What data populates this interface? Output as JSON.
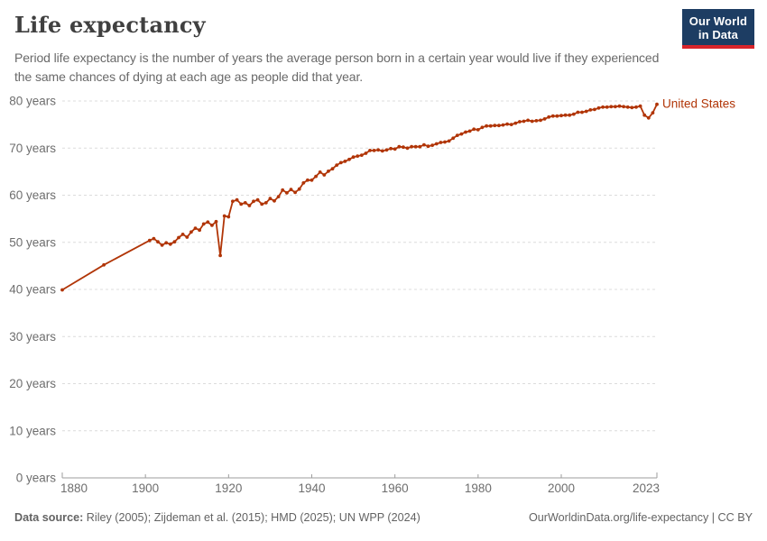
{
  "header": {
    "title": "Life expectancy",
    "subtitle": "Period life expectancy is the number of years the average person born in a certain year would live if they experienced the same chances of dying at each age as people did that year."
  },
  "logo": {
    "line1": "Our World",
    "line2": "in Data",
    "bg_color": "#1d3d63",
    "accent_color": "#d8242a"
  },
  "footer": {
    "datasource_label": "Data source:",
    "datasource_text": " Riley (2005); Zijdeman et al. (2015); HMD (2025); UN WPP (2024)",
    "link_text": "OurWorldinData.org/life-expectancy | CC BY"
  },
  "chart_data": {
    "type": "line",
    "title": "Life expectancy",
    "entity": "United States",
    "xlabel": "",
    "ylabel": "",
    "xlim": [
      1880,
      2023
    ],
    "ylim": [
      0,
      80
    ],
    "grid": "horizontal-dashed",
    "legend_position": "line-end-label",
    "x_ticks": [
      {
        "v": 1880,
        "label": "1880"
      },
      {
        "v": 1900,
        "label": "1900"
      },
      {
        "v": 1920,
        "label": "1920"
      },
      {
        "v": 1940,
        "label": "1940"
      },
      {
        "v": 1960,
        "label": "1960"
      },
      {
        "v": 1980,
        "label": "1980"
      },
      {
        "v": 2000,
        "label": "2000"
      },
      {
        "v": 2023,
        "label": "2023"
      }
    ],
    "y_ticks": [
      {
        "v": 0,
        "label": "0 years"
      },
      {
        "v": 10,
        "label": "10 years"
      },
      {
        "v": 20,
        "label": "20 years"
      },
      {
        "v": 30,
        "label": "30 years"
      },
      {
        "v": 40,
        "label": "40 years"
      },
      {
        "v": 50,
        "label": "50 years"
      },
      {
        "v": 60,
        "label": "60 years"
      },
      {
        "v": 70,
        "label": "70 years"
      },
      {
        "v": 80,
        "label": "80 years"
      }
    ],
    "series": [
      {
        "name": "United States",
        "color": "#b13507",
        "points": [
          [
            1880,
            39.9
          ],
          [
            1890,
            45.2
          ],
          [
            1901,
            50.4
          ],
          [
            1902,
            50.8
          ],
          [
            1903,
            50.1
          ],
          [
            1904,
            49.4
          ],
          [
            1905,
            49.9
          ],
          [
            1906,
            49.6
          ],
          [
            1907,
            50.1
          ],
          [
            1908,
            51.0
          ],
          [
            1909,
            51.7
          ],
          [
            1910,
            51.1
          ],
          [
            1911,
            52.2
          ],
          [
            1912,
            53.0
          ],
          [
            1913,
            52.6
          ],
          [
            1914,
            53.9
          ],
          [
            1915,
            54.3
          ],
          [
            1916,
            53.6
          ],
          [
            1917,
            54.4
          ],
          [
            1918,
            47.2
          ],
          [
            1919,
            55.6
          ],
          [
            1920,
            55.4
          ],
          [
            1921,
            58.7
          ],
          [
            1922,
            59.0
          ],
          [
            1923,
            58.1
          ],
          [
            1924,
            58.4
          ],
          [
            1925,
            57.8
          ],
          [
            1926,
            58.7
          ],
          [
            1927,
            59.0
          ],
          [
            1928,
            58.1
          ],
          [
            1929,
            58.4
          ],
          [
            1930,
            59.3
          ],
          [
            1931,
            58.8
          ],
          [
            1932,
            59.7
          ],
          [
            1933,
            61.1
          ],
          [
            1934,
            60.5
          ],
          [
            1935,
            61.2
          ],
          [
            1936,
            60.6
          ],
          [
            1937,
            61.3
          ],
          [
            1938,
            62.6
          ],
          [
            1939,
            63.2
          ],
          [
            1940,
            63.2
          ],
          [
            1941,
            64.0
          ],
          [
            1942,
            64.9
          ],
          [
            1943,
            64.3
          ],
          [
            1944,
            65.1
          ],
          [
            1945,
            65.6
          ],
          [
            1946,
            66.4
          ],
          [
            1947,
            66.9
          ],
          [
            1948,
            67.2
          ],
          [
            1949,
            67.6
          ],
          [
            1950,
            68.1
          ],
          [
            1951,
            68.3
          ],
          [
            1952,
            68.5
          ],
          [
            1953,
            68.9
          ],
          [
            1954,
            69.5
          ],
          [
            1955,
            69.5
          ],
          [
            1956,
            69.6
          ],
          [
            1957,
            69.4
          ],
          [
            1958,
            69.6
          ],
          [
            1959,
            69.9
          ],
          [
            1960,
            69.8
          ],
          [
            1961,
            70.3
          ],
          [
            1962,
            70.2
          ],
          [
            1963,
            70.0
          ],
          [
            1964,
            70.3
          ],
          [
            1965,
            70.3
          ],
          [
            1966,
            70.3
          ],
          [
            1967,
            70.7
          ],
          [
            1968,
            70.4
          ],
          [
            1969,
            70.6
          ],
          [
            1970,
            70.9
          ],
          [
            1971,
            71.2
          ],
          [
            1972,
            71.3
          ],
          [
            1973,
            71.5
          ],
          [
            1974,
            72.1
          ],
          [
            1975,
            72.7
          ],
          [
            1976,
            73.0
          ],
          [
            1977,
            73.4
          ],
          [
            1978,
            73.6
          ],
          [
            1979,
            74.0
          ],
          [
            1980,
            73.9
          ],
          [
            1981,
            74.4
          ],
          [
            1982,
            74.7
          ],
          [
            1983,
            74.7
          ],
          [
            1984,
            74.8
          ],
          [
            1985,
            74.8
          ],
          [
            1986,
            74.9
          ],
          [
            1987,
            75.1
          ],
          [
            1988,
            75.0
          ],
          [
            1989,
            75.3
          ],
          [
            1990,
            75.6
          ],
          [
            1991,
            75.7
          ],
          [
            1992,
            75.9
          ],
          [
            1993,
            75.7
          ],
          [
            1994,
            75.8
          ],
          [
            1995,
            75.9
          ],
          [
            1996,
            76.2
          ],
          [
            1997,
            76.6
          ],
          [
            1998,
            76.8
          ],
          [
            1999,
            76.8
          ],
          [
            2000,
            76.9
          ],
          [
            2001,
            77.0
          ],
          [
            2002,
            77.0
          ],
          [
            2003,
            77.2
          ],
          [
            2004,
            77.6
          ],
          [
            2005,
            77.6
          ],
          [
            2006,
            77.8
          ],
          [
            2007,
            78.1
          ],
          [
            2008,
            78.2
          ],
          [
            2009,
            78.5
          ],
          [
            2010,
            78.7
          ],
          [
            2011,
            78.7
          ],
          [
            2012,
            78.8
          ],
          [
            2013,
            78.8
          ],
          [
            2014,
            78.9
          ],
          [
            2015,
            78.8
          ],
          [
            2016,
            78.7
          ],
          [
            2017,
            78.6
          ],
          [
            2018,
            78.7
          ],
          [
            2019,
            78.9
          ],
          [
            2020,
            77.0
          ],
          [
            2021,
            76.4
          ],
          [
            2022,
            77.5
          ],
          [
            2023,
            79.3
          ]
        ]
      }
    ]
  }
}
